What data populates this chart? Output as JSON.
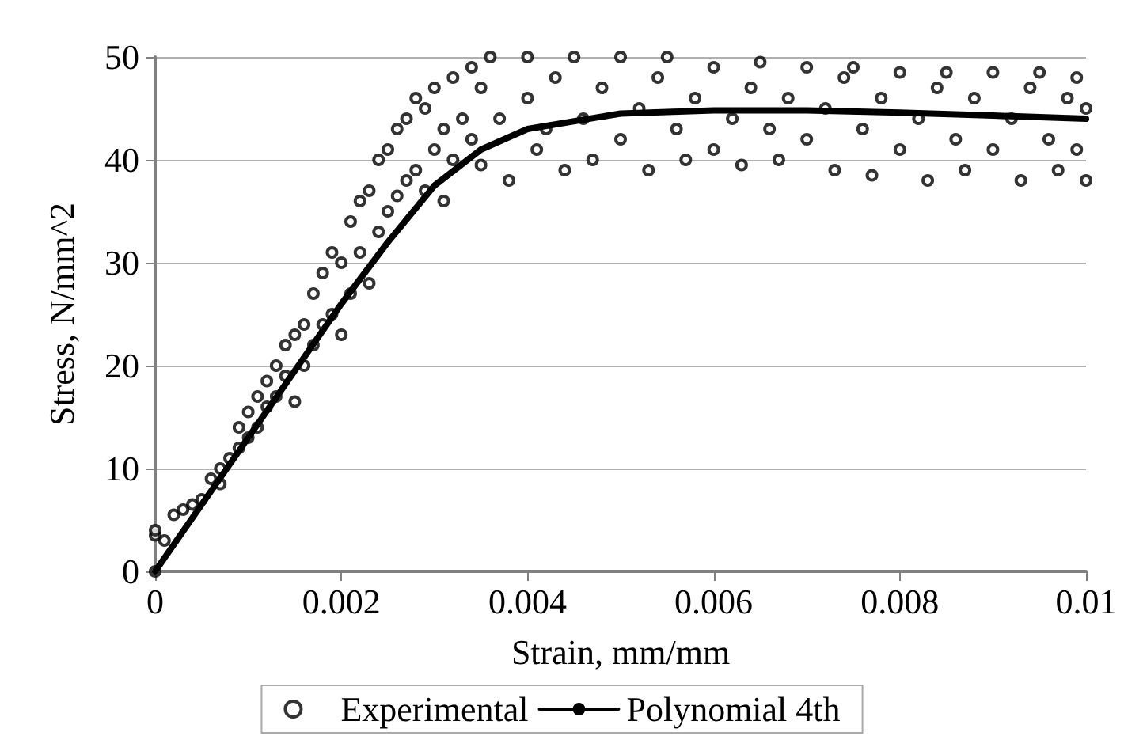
{
  "chart_data": {
    "type": "scatter",
    "xlabel": "Strain, mm/mm",
    "ylabel": "Stress, N/mm^2",
    "xlim": [
      0,
      0.01
    ],
    "xticks": [
      0,
      0.002,
      0.004,
      0.006,
      0.008,
      0.01
    ],
    "ylim": [
      0,
      50
    ],
    "yticks": [
      0,
      10,
      20,
      30,
      40,
      50
    ],
    "grid": "y",
    "legend": "bottom",
    "marker": "circle",
    "series": [
      {
        "name": "Experimental",
        "color": "#000000",
        "x": [
          0,
          0,
          0,
          0.0001,
          0.0002,
          0.0003,
          0.0004,
          0.0005,
          0.0006,
          0.0007,
          0.0007,
          0.0008,
          0.0009,
          0.0009,
          0.001,
          0.001,
          0.0011,
          0.0011,
          0.0012,
          0.0012,
          0.0013,
          0.0013,
          0.0014,
          0.0014,
          0.0015,
          0.0015,
          0.0016,
          0.0016,
          0.0017,
          0.0017,
          0.0018,
          0.0018,
          0.0019,
          0.0019,
          0.002,
          0.002,
          0.0021,
          0.0021,
          0.0022,
          0.0022,
          0.0023,
          0.0023,
          0.0024,
          0.0024,
          0.0025,
          0.0025,
          0.0026,
          0.0026,
          0.0027,
          0.0027,
          0.0028,
          0.0028,
          0.0029,
          0.0029,
          0.003,
          0.003,
          0.0031,
          0.0031,
          0.0032,
          0.0032,
          0.0033,
          0.0034,
          0.0034,
          0.0035,
          0.0035,
          0.0036,
          0.0037,
          0.0038,
          0.004,
          0.004,
          0.0041,
          0.0042,
          0.0043,
          0.0044,
          0.0045,
          0.0046,
          0.0047,
          0.0048,
          0.005,
          0.005,
          0.0052,
          0.0053,
          0.0054,
          0.0055,
          0.0056,
          0.0057,
          0.0058,
          0.006,
          0.006,
          0.0062,
          0.0063,
          0.0064,
          0.0065,
          0.0066,
          0.0067,
          0.0068,
          0.007,
          0.007,
          0.0072,
          0.0073,
          0.0074,
          0.0075,
          0.0076,
          0.0077,
          0.0078,
          0.008,
          0.008,
          0.0082,
          0.0083,
          0.0084,
          0.0085,
          0.0086,
          0.0087,
          0.0088,
          0.009,
          0.009,
          0.0092,
          0.0093,
          0.0094,
          0.0095,
          0.0096,
          0.0097,
          0.0098,
          0.0099,
          0.0099,
          0.01,
          0.01
        ],
        "values": [
          0,
          3.5,
          4,
          3,
          5.5,
          6,
          6.5,
          7,
          9,
          8.5,
          10,
          11,
          12,
          14,
          13,
          15.5,
          17,
          14,
          18.5,
          16,
          20,
          17,
          22,
          19,
          23,
          16.5,
          24,
          20,
          27,
          22,
          29,
          24,
          31,
          25,
          30,
          23,
          34,
          27,
          36,
          31,
          37,
          28,
          40,
          33,
          41,
          35,
          43,
          36.5,
          44,
          38,
          46,
          39,
          45,
          37,
          47,
          41,
          43,
          36,
          48,
          40,
          44,
          49,
          42,
          47,
          39.5,
          50,
          44,
          38,
          50,
          46,
          41,
          43,
          48,
          39,
          50,
          44,
          40,
          47,
          50,
          42,
          45,
          39,
          48,
          50,
          43,
          40,
          46,
          49,
          41,
          44,
          39.5,
          47,
          49.5,
          43,
          40,
          46,
          49,
          42,
          45,
          39,
          48,
          49,
          43,
          38.5,
          46,
          48.5,
          41,
          44,
          38,
          47,
          48.5,
          42,
          39,
          46,
          48.5,
          41,
          44,
          38,
          47,
          48.5,
          42,
          39,
          46,
          48,
          41,
          45,
          38
        ]
      },
      {
        "name": "Polynomial 4th",
        "type": "line",
        "color": "#000000",
        "marker": "none",
        "line_style": "solid",
        "x": [
          0,
          0.0005,
          0.001,
          0.0015,
          0.002,
          0.0025,
          0.003,
          0.0035,
          0.004,
          0.005,
          0.006,
          0.007,
          0.008,
          0.009,
          0.01
        ],
        "values": [
          0,
          6.5,
          13,
          19.5,
          26,
          32,
          37.5,
          41,
          43,
          44.5,
          44.8,
          44.8,
          44.6,
          44.3,
          44
        ]
      }
    ]
  }
}
